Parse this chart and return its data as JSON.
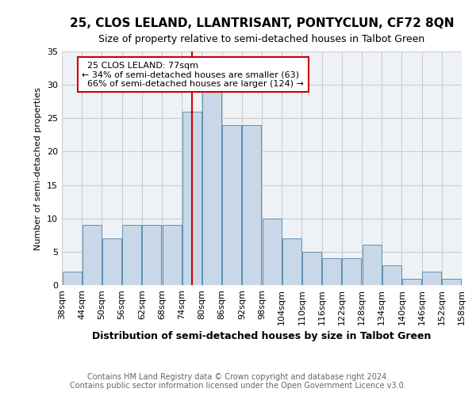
{
  "title": "25, CLOS LELAND, LLANTRISANT, PONTYCLUN, CF72 8QN",
  "subtitle": "Size of property relative to semi-detached houses in Talbot Green",
  "xlabel": "Distribution of semi-detached houses by size in Talbot Green",
  "ylabel": "Number of semi-detached properties",
  "footnote": "Contains HM Land Registry data © Crown copyright and database right 2024.\nContains public sector information licensed under the Open Government Licence v3.0.",
  "bin_labels": [
    "38sqm",
    "44sqm",
    "50sqm",
    "56sqm",
    "62sqm",
    "68sqm",
    "74sqm",
    "80sqm",
    "86sqm",
    "92sqm",
    "98sqm",
    "104sqm",
    "110sqm",
    "116sqm",
    "122sqm",
    "128sqm",
    "134sqm",
    "140sqm",
    "146sqm",
    "152sqm",
    "158sqm"
  ],
  "counts": [
    2,
    9,
    7,
    9,
    9,
    9,
    26,
    29,
    24,
    24,
    10,
    7,
    5,
    4,
    4,
    6,
    3,
    1,
    2,
    1
  ],
  "bin_edges": [
    38,
    44,
    50,
    56,
    62,
    68,
    74,
    80,
    86,
    92,
    98,
    104,
    110,
    116,
    122,
    128,
    134,
    140,
    146,
    152,
    158
  ],
  "property_size": 77,
  "property_label": "25 CLOS LELAND: 77sqm",
  "smaller_pct": 34,
  "smaller_count": 63,
  "larger_pct": 66,
  "larger_count": 124,
  "bar_color": "#c8d8e8",
  "bar_edge_color": "#6090b0",
  "line_color": "#cc0000",
  "annotation_box_color": "#cc0000",
  "ylim": [
    0,
    35
  ],
  "yticks": [
    0,
    5,
    10,
    15,
    20,
    25,
    30,
    35
  ],
  "grid_color": "#cccccc",
  "background_color": "#eef2f7",
  "title_fontsize": 11,
  "subtitle_fontsize": 9,
  "xlabel_fontsize": 9,
  "ylabel_fontsize": 8,
  "tick_fontsize": 8,
  "annot_fontsize": 8,
  "footnote_fontsize": 7
}
